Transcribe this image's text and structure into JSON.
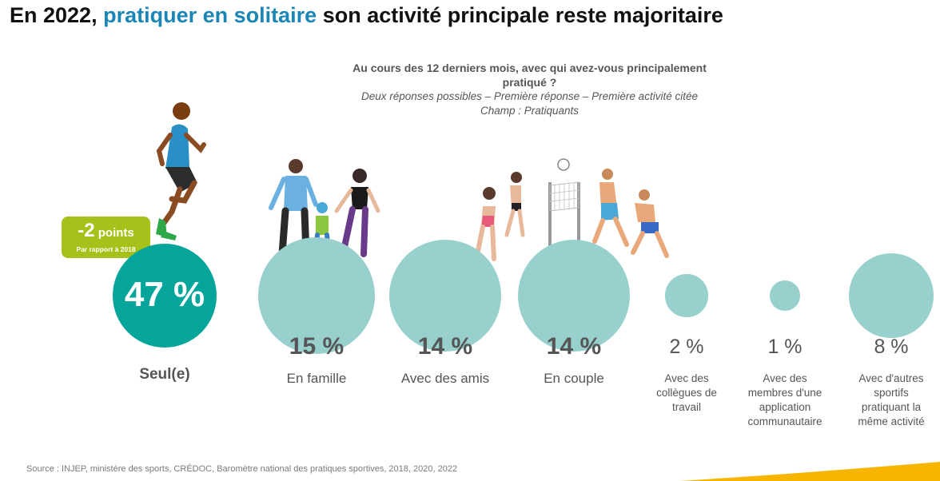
{
  "title": {
    "prefix": "En 2022,",
    "highlight": "pratiquer en solitaire",
    "suffix": "son activité principale reste majoritaire"
  },
  "question": {
    "line1": "Au cours des 12 derniers mois, avec qui avez-vous principalement",
    "line2": "pratiqué ?",
    "sub1": "Deux réponses possibles – Première réponse – Première activité citée",
    "sub2": "Champ : Pratiquants"
  },
  "badge": {
    "value": "-2",
    "unit": "points",
    "note": "Par rapport à 2018"
  },
  "source": "Source : INJEP, ministère des sports, CRÉDOC, Baromètre national des pratiques sportives, 2018, 2020, 2022",
  "colors": {
    "title_highlight": "#1a86b5",
    "main_bubble": "#05a59b",
    "bubble": "#97d0cd",
    "badge": "#a6c21a",
    "text": "#555555",
    "swoosh": "#f7b500"
  },
  "chart_data": {
    "type": "bubble",
    "unit": "%",
    "categories": [
      "Seul(e)",
      "En famille",
      "Avec des amis",
      "En couple",
      "Avec des collègues de travail",
      "Avec des membres d'une application communautaire",
      "Avec d'autres sportifs pratiquant la même activité"
    ],
    "values": [
      47,
      15,
      14,
      14,
      2,
      1,
      8
    ],
    "labels": [
      "47 %",
      "15 %",
      "14 %",
      "14 %",
      "2 %",
      "1 %",
      "8 %"
    ],
    "category_lines": [
      [
        "Seul(e)"
      ],
      [
        "En famille"
      ],
      [
        "Avec des amis"
      ],
      [
        "En couple"
      ],
      [
        "Avec des",
        "collègues de",
        "travail"
      ],
      [
        "Avec des",
        "membres d'une",
        "application",
        "communautaire"
      ],
      [
        "Avec d'autres",
        "sportifs",
        "pratiquant la",
        "même activité"
      ]
    ]
  }
}
